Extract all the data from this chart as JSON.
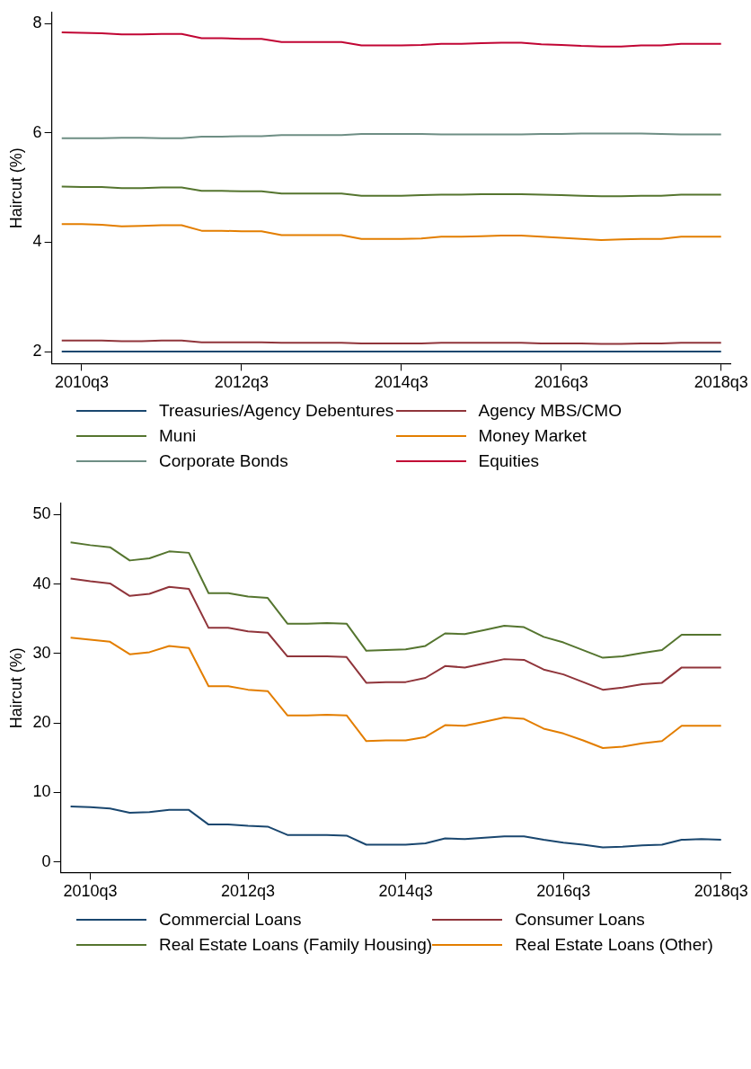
{
  "chart_data": [
    {
      "type": "line",
      "ylabel": "Haircut (%)",
      "legend": "bottom",
      "categories": [
        null,
        "2010q3",
        null,
        null,
        null,
        null,
        null,
        null,
        null,
        "2012q3",
        null,
        null,
        null,
        null,
        null,
        null,
        null,
        "2014q3",
        null,
        null,
        null,
        null,
        null,
        null,
        null,
        "2016q3",
        null,
        null,
        null,
        null,
        null,
        null,
        null,
        "2018q3"
      ],
      "ylim": [
        1.78,
        8.2
      ],
      "yticks": [
        2,
        4,
        6,
        8
      ],
      "series": [
        {
          "name": "Treasuries/Agency Debentures",
          "color": "#1a476f",
          "values": [
            2,
            2,
            2,
            2,
            2,
            2,
            2,
            2,
            2,
            2,
            2,
            2,
            2,
            2,
            2,
            2,
            2,
            2,
            2,
            2,
            2,
            2,
            2,
            2,
            2,
            2,
            2,
            2,
            2,
            2,
            2,
            2,
            2,
            2
          ]
        },
        {
          "name": "Agency MBS/CMO",
          "color": "#90353b",
          "values": [
            2.2,
            2.2,
            2.2,
            2.19,
            2.19,
            2.2,
            2.2,
            2.17,
            2.17,
            2.17,
            2.17,
            2.16,
            2.16,
            2.16,
            2.16,
            2.15,
            2.15,
            2.15,
            2.15,
            2.16,
            2.16,
            2.16,
            2.16,
            2.16,
            2.15,
            2.15,
            2.15,
            2.14,
            2.14,
            2.15,
            2.15,
            2.16,
            2.16,
            2.16
          ]
        },
        {
          "name": "Muni",
          "color": "#55752f",
          "values": [
            5.02,
            5.01,
            5.01,
            4.99,
            4.99,
            5.0,
            5.0,
            4.94,
            4.94,
            4.93,
            4.93,
            4.89,
            4.89,
            4.89,
            4.89,
            4.85,
            4.85,
            4.85,
            4.86,
            4.87,
            4.87,
            4.88,
            4.88,
            4.88,
            4.87,
            4.86,
            4.85,
            4.84,
            4.84,
            4.85,
            4.85,
            4.87,
            4.87,
            4.87
          ]
        },
        {
          "name": "Money Market",
          "color": "#e37e00",
          "values": [
            4.33,
            4.33,
            4.32,
            4.29,
            4.3,
            4.31,
            4.31,
            4.21,
            4.21,
            4.2,
            4.2,
            4.13,
            4.13,
            4.13,
            4.13,
            4.06,
            4.06,
            4.06,
            4.07,
            4.1,
            4.1,
            4.11,
            4.12,
            4.12,
            4.1,
            4.08,
            4.06,
            4.04,
            4.05,
            4.06,
            4.06,
            4.1,
            4.1,
            4.1
          ]
        },
        {
          "name": "Corporate Bonds",
          "color": "#6e8e84",
          "values": [
            5.9,
            5.9,
            5.9,
            5.91,
            5.91,
            5.9,
            5.9,
            5.93,
            5.93,
            5.94,
            5.94,
            5.96,
            5.96,
            5.96,
            5.96,
            5.98,
            5.98,
            5.98,
            5.98,
            5.97,
            5.97,
            5.97,
            5.97,
            5.97,
            5.98,
            5.98,
            5.99,
            5.99,
            5.99,
            5.99,
            5.98,
            5.97,
            5.97,
            5.97
          ]
        },
        {
          "name": "Equities",
          "color": "#c10534",
          "values": [
            7.84,
            7.83,
            7.82,
            7.8,
            7.8,
            7.81,
            7.81,
            7.73,
            7.73,
            7.72,
            7.72,
            7.66,
            7.66,
            7.66,
            7.66,
            7.6,
            7.6,
            7.6,
            7.61,
            7.63,
            7.63,
            7.64,
            7.65,
            7.65,
            7.62,
            7.61,
            7.59,
            7.58,
            7.58,
            7.6,
            7.6,
            7.63,
            7.63,
            7.63
          ]
        }
      ]
    },
    {
      "type": "line",
      "ylabel": "Haircut (%)",
      "legend": "bottom",
      "categories": [
        null,
        "2010q3",
        null,
        null,
        null,
        null,
        null,
        null,
        null,
        "2012q3",
        null,
        null,
        null,
        null,
        null,
        null,
        null,
        "2014q3",
        null,
        null,
        null,
        null,
        null,
        null,
        null,
        "2016q3",
        null,
        null,
        null,
        null,
        null,
        null,
        null,
        "2018q3"
      ],
      "ylim": [
        -1.5,
        51.6
      ],
      "yticks": [
        0,
        10,
        20,
        30,
        40,
        50
      ],
      "series": [
        {
          "name": "Commercial Loans",
          "color": "#1a476f",
          "values": [
            8.0,
            7.9,
            7.7,
            7.1,
            7.2,
            7.5,
            7.5,
            5.4,
            5.4,
            5.2,
            5.1,
            3.9,
            3.9,
            3.9,
            3.8,
            2.5,
            2.5,
            2.5,
            2.7,
            3.4,
            3.3,
            3.5,
            3.7,
            3.7,
            3.2,
            2.8,
            2.5,
            2.1,
            2.2,
            2.4,
            2.5,
            3.2,
            3.3,
            3.2
          ]
        },
        {
          "name": "Consumer Loans",
          "color": "#90353b",
          "values": [
            40.8,
            40.4,
            40.1,
            38.3,
            38.6,
            39.6,
            39.3,
            33.7,
            33.7,
            33.2,
            33.0,
            29.6,
            29.6,
            29.6,
            29.5,
            25.8,
            25.9,
            25.9,
            26.5,
            28.2,
            28.0,
            28.6,
            29.2,
            29.1,
            27.7,
            27.0,
            25.9,
            24.8,
            25.1,
            25.6,
            25.8,
            28.0,
            28.0,
            28.0
          ]
        },
        {
          "name": "Real Estate Loans (Family Housing)",
          "color": "#55752f",
          "values": [
            46.0,
            45.6,
            45.3,
            43.4,
            43.7,
            44.7,
            44.5,
            38.7,
            38.7,
            38.2,
            38.0,
            34.3,
            34.3,
            34.4,
            34.3,
            30.4,
            30.5,
            30.6,
            31.1,
            32.9,
            32.8,
            33.4,
            34.0,
            33.8,
            32.4,
            31.6,
            30.5,
            29.4,
            29.6,
            30.1,
            30.5,
            32.7,
            32.7,
            32.7
          ]
        },
        {
          "name": "Real Estate Loans (Other)",
          "color": "#e37e00",
          "values": [
            32.3,
            32.0,
            31.7,
            29.9,
            30.2,
            31.1,
            30.8,
            25.3,
            25.3,
            24.8,
            24.6,
            21.1,
            21.1,
            21.2,
            21.1,
            17.4,
            17.5,
            17.5,
            18.0,
            19.7,
            19.6,
            20.2,
            20.8,
            20.6,
            19.2,
            18.5,
            17.5,
            16.4,
            16.6,
            17.1,
            17.4,
            19.6,
            19.6,
            19.6
          ]
        }
      ]
    }
  ]
}
